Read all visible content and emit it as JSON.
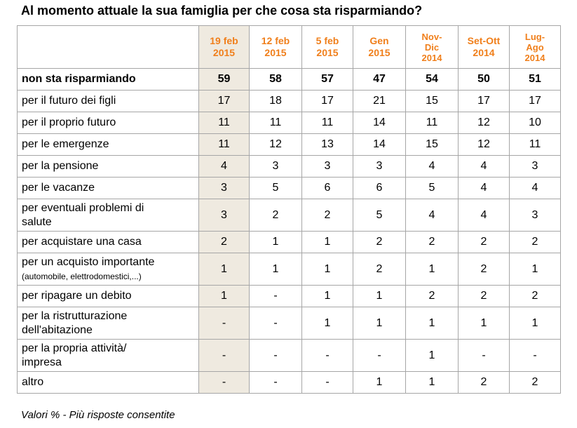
{
  "title": "Al momento attuale la sua famiglia per che cosa sta risparmiando?",
  "note": "Valori % - Più risposte consentite",
  "colors": {
    "header_text": "#f07f1b",
    "highlight_column": "#efeae0",
    "grid": "#a6a6a6"
  },
  "chart_data": {
    "type": "table",
    "title": "Al momento attuale la sua famiglia per che cosa sta risparmiando?",
    "columns": [
      {
        "line1": "19 feb",
        "line2": "2015",
        "line3": ""
      },
      {
        "line1": "12 feb",
        "line2": "2015",
        "line3": ""
      },
      {
        "line1": "5 feb",
        "line2": "2015",
        "line3": ""
      },
      {
        "line1": "Gen",
        "line2": "2015",
        "line3": ""
      },
      {
        "line1": "Nov-",
        "line2": "Dic",
        "line3": "2014"
      },
      {
        "line1": "Set-Ott",
        "line2": "2014",
        "line3": ""
      },
      {
        "line1": "Lug-",
        "line2": "Ago",
        "line3": "2014"
      }
    ],
    "rows": [
      {
        "label": "non sta risparmiando",
        "label2": "",
        "values": [
          "59",
          "58",
          "57",
          "47",
          "54",
          "50",
          "51"
        ]
      },
      {
        "label": "per il futuro dei figli",
        "label2": "",
        "values": [
          "17",
          "18",
          "17",
          "21",
          "15",
          "17",
          "17"
        ]
      },
      {
        "label": "per il proprio futuro",
        "label2": "",
        "values": [
          "11",
          "11",
          "11",
          "14",
          "11",
          "12",
          "10"
        ]
      },
      {
        "label": "per le emergenze",
        "label2": "",
        "values": [
          "11",
          "12",
          "13",
          "14",
          "15",
          "12",
          "11"
        ]
      },
      {
        "label": "per la pensione",
        "label2": "",
        "values": [
          "4",
          "3",
          "3",
          "3",
          "4",
          "4",
          "3"
        ]
      },
      {
        "label": "per le vacanze",
        "label2": "",
        "values": [
          "3",
          "5",
          "6",
          "6",
          "5",
          "4",
          "4"
        ]
      },
      {
        "label": "per eventuali problemi di",
        "label2": "salute",
        "values": [
          "3",
          "2",
          "2",
          "5",
          "4",
          "4",
          "3"
        ]
      },
      {
        "label": "per acquistare una casa",
        "label2": "",
        "values": [
          "2",
          "1",
          "1",
          "2",
          "2",
          "2",
          "2"
        ]
      },
      {
        "label": "per un acquisto importante",
        "label2": "(automobile, elettrodomestici,...)",
        "values": [
          "1",
          "1",
          "1",
          "2",
          "1",
          "2",
          "1"
        ]
      },
      {
        "label": "per ripagare un debito",
        "label2": "",
        "values": [
          "1",
          "-",
          "1",
          "1",
          "2",
          "2",
          "2"
        ]
      },
      {
        "label": "per la ristrutturazione",
        "label2": "dell'abitazione",
        "values": [
          "-",
          "-",
          "1",
          "1",
          "1",
          "1",
          "1"
        ]
      },
      {
        "label": "per la propria attività/",
        "label2": "impresa",
        "values": [
          "-",
          "-",
          "-",
          "-",
          "1",
          "-",
          "-"
        ]
      },
      {
        "label": "altro",
        "label2": "",
        "values": [
          "-",
          "-",
          "-",
          "1",
          "1",
          "2",
          "2"
        ]
      }
    ]
  }
}
